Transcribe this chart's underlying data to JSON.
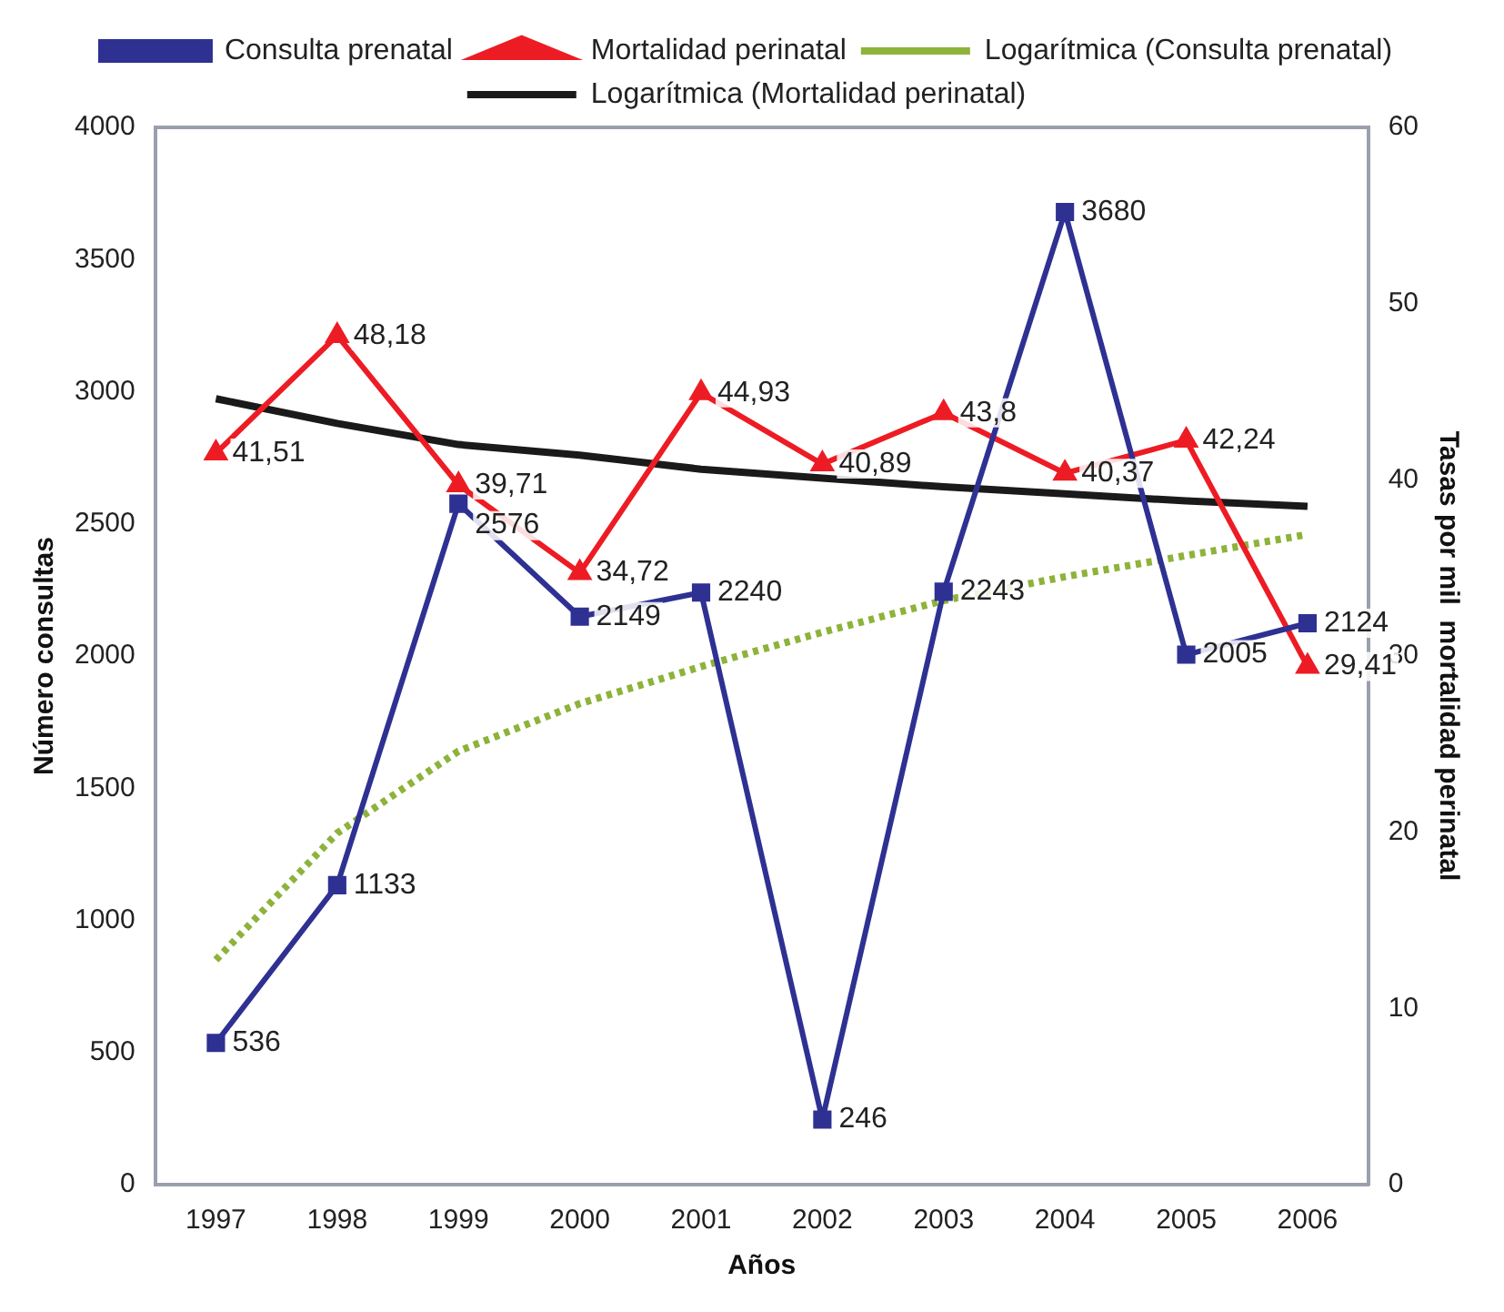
{
  "chart_data": {
    "type": "line",
    "xlabel": "Años",
    "ylabel": "Número consultas",
    "y2label": "Tasas por mil  mortalidad perinatal",
    "categories": [
      "1997",
      "1998",
      "1999",
      "2000",
      "2001",
      "2002",
      "2003",
      "2004",
      "2005",
      "2006"
    ],
    "series": [
      {
        "name": "Consulta prenatal",
        "color": "#2e3192",
        "marker": "square",
        "values": [
          536,
          1133,
          2576,
          2149,
          2240,
          246,
          2243,
          3680,
          2005,
          2124
        ],
        "value_labels": [
          "536",
          "1133",
          "2576",
          "2149",
          "2240",
          "246",
          "2243",
          "3680",
          "2005",
          "2124"
        ]
      },
      {
        "name": "Mortalidad perinatal",
        "color": "#ed1c24",
        "marker": "triangle",
        "axis": "y2",
        "values": [
          41.51,
          48.18,
          39.71,
          34.72,
          44.93,
          40.89,
          43.8,
          40.37,
          42.24,
          29.41
        ],
        "value_labels": [
          "41,51",
          "48,18",
          "39,71",
          "34,72",
          "44,93",
          "40,89",
          "43,8",
          "40,37",
          "42,24",
          "29,41"
        ]
      },
      {
        "name": "Logarítmica (Consulta prenatal)",
        "color": "#8db33a",
        "marker": "none",
        "line_style": "dotted",
        "values": [
          850,
          1330,
          1640,
          1820,
          1960,
          2090,
          2210,
          2300,
          2380,
          2460
        ]
      },
      {
        "name": "Logarítmica (Mortalidad perinatal)",
        "color": "#1a1a1a",
        "marker": "none",
        "line_style": "solid",
        "axis": "y2",
        "values": [
          44.6,
          43.2,
          42.0,
          41.4,
          40.6,
          40.1,
          39.6,
          39.2,
          38.8,
          38.5
        ]
      }
    ],
    "ylim": [
      0,
      4000
    ],
    "yticks": [
      0,
      500,
      1000,
      1500,
      2000,
      2500,
      3000,
      3500,
      4000
    ],
    "y2lim": [
      0,
      60
    ],
    "y2ticks": [
      0,
      10,
      20,
      30,
      40,
      50,
      60
    ],
    "grid": false,
    "legend": "top"
  }
}
